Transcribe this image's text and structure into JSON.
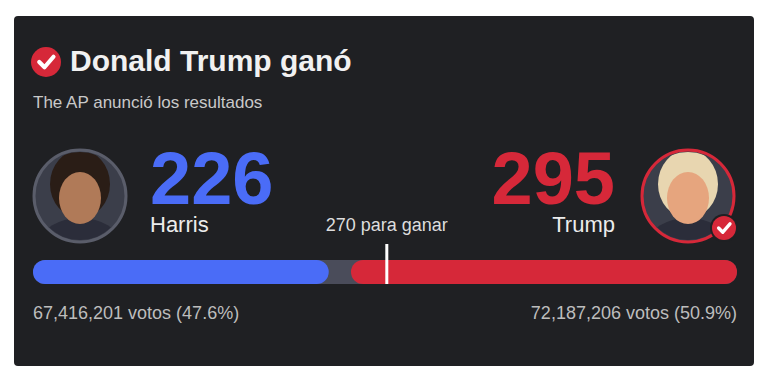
{
  "chart_data": {
    "type": "bar",
    "orientation": "horizontal",
    "title": "Donald Trump ganó",
    "subtitle": "The AP anunció los resultados",
    "categories": [
      "Harris",
      "Trump"
    ],
    "values": [
      226,
      295
    ],
    "colors": [
      "#4a6cf7",
      "#d62839"
    ],
    "data_labels": true,
    "tick_labels": false,
    "xlim": [
      0,
      538
    ],
    "annotations": [
      {
        "value": 270,
        "label": "270 para ganar"
      }
    ],
    "popular_votes": [
      67416201,
      72187206
    ],
    "popular_vote_pct": [
      47.6,
      50.9
    ],
    "popular_vote_labels": [
      "67,416,201 votos (47.6%)",
      "72,187,206 votos (50.9%)"
    ]
  }
}
